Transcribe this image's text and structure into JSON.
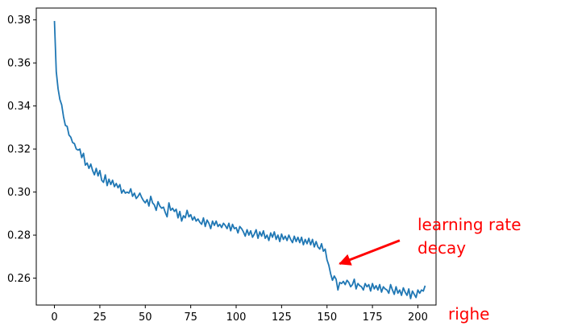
{
  "colors": {
    "line": "#1f77b4",
    "annotation": "#ff0000",
    "axis": "#000000",
    "background": "#ffffff"
  },
  "annotation": {
    "line1": "learning rate",
    "line2": "decay",
    "target": [
      157,
      0.2667
    ],
    "tail": [
      190,
      0.2775
    ]
  },
  "corner_text": "righe",
  "chart_data": {
    "type": "line",
    "title": "",
    "xlabel": "",
    "ylabel": "",
    "xlim": [
      -10,
      210
    ],
    "ylim": [
      0.2475,
      0.3855
    ],
    "xticks": [
      0,
      25,
      50,
      75,
      100,
      125,
      150,
      175,
      200
    ],
    "yticks": [
      0.26,
      0.28,
      0.3,
      0.32,
      0.34,
      0.36,
      0.38
    ],
    "ytick_labels": [
      "0.26",
      "0.28",
      "0.30",
      "0.32",
      "0.34",
      "0.36",
      "0.38"
    ],
    "grid": false,
    "legend": "none",
    "series": [
      {
        "values": [
          0.3795,
          0.356,
          0.348,
          0.343,
          0.3405,
          0.335,
          0.331,
          0.3305,
          0.3265,
          0.3255,
          0.323,
          0.3225,
          0.32,
          0.3195,
          0.32,
          0.316,
          0.318,
          0.3125,
          0.3135,
          0.311,
          0.313,
          0.31,
          0.308,
          0.311,
          0.3075,
          0.31,
          0.3055,
          0.3045,
          0.308,
          0.303,
          0.306,
          0.3035,
          0.3055,
          0.3025,
          0.304,
          0.302,
          0.3035,
          0.2995,
          0.301,
          0.2995,
          0.3,
          0.2995,
          0.3015,
          0.298,
          0.2995,
          0.297,
          0.298,
          0.2995,
          0.2975,
          0.296,
          0.295,
          0.2965,
          0.2935,
          0.298,
          0.295,
          0.294,
          0.2915,
          0.2955,
          0.2935,
          0.2925,
          0.293,
          0.2905,
          0.2885,
          0.295,
          0.2915,
          0.2925,
          0.291,
          0.292,
          0.288,
          0.291,
          0.2865,
          0.289,
          0.288,
          0.2915,
          0.2885,
          0.2895,
          0.287,
          0.2885,
          0.2865,
          0.2875,
          0.286,
          0.285,
          0.288,
          0.284,
          0.287,
          0.2855,
          0.283,
          0.2865,
          0.2845,
          0.2865,
          0.284,
          0.285,
          0.2835,
          0.2855,
          0.2845,
          0.283,
          0.2855,
          0.282,
          0.285,
          0.283,
          0.2835,
          0.281,
          0.284,
          0.283,
          0.2815,
          0.2795,
          0.2825,
          0.28,
          0.282,
          0.279,
          0.2805,
          0.2825,
          0.2785,
          0.2815,
          0.2795,
          0.282,
          0.2785,
          0.28,
          0.2775,
          0.281,
          0.279,
          0.2815,
          0.278,
          0.28,
          0.277,
          0.2805,
          0.278,
          0.2795,
          0.2775,
          0.28,
          0.278,
          0.2765,
          0.2795,
          0.277,
          0.279,
          0.2765,
          0.279,
          0.2755,
          0.278,
          0.276,
          0.2785,
          0.2755,
          0.278,
          0.2745,
          0.277,
          0.2745,
          0.2735,
          0.276,
          0.2725,
          0.2735,
          0.2685,
          0.266,
          0.262,
          0.259,
          0.261,
          0.2595,
          0.2545,
          0.258,
          0.2575,
          0.2585,
          0.257,
          0.259,
          0.258,
          0.256,
          0.257,
          0.2595,
          0.255,
          0.2575,
          0.2565,
          0.256,
          0.2545,
          0.2575,
          0.256,
          0.257,
          0.254,
          0.2575,
          0.255,
          0.2565,
          0.2545,
          0.257,
          0.2535,
          0.256,
          0.255,
          0.2545,
          0.253,
          0.257,
          0.2545,
          0.2525,
          0.256,
          0.253,
          0.2545,
          0.252,
          0.2555,
          0.2535,
          0.252,
          0.255,
          0.2505,
          0.254,
          0.2525,
          0.251,
          0.2545,
          0.253,
          0.2545,
          0.254,
          0.2565
        ]
      }
    ]
  }
}
